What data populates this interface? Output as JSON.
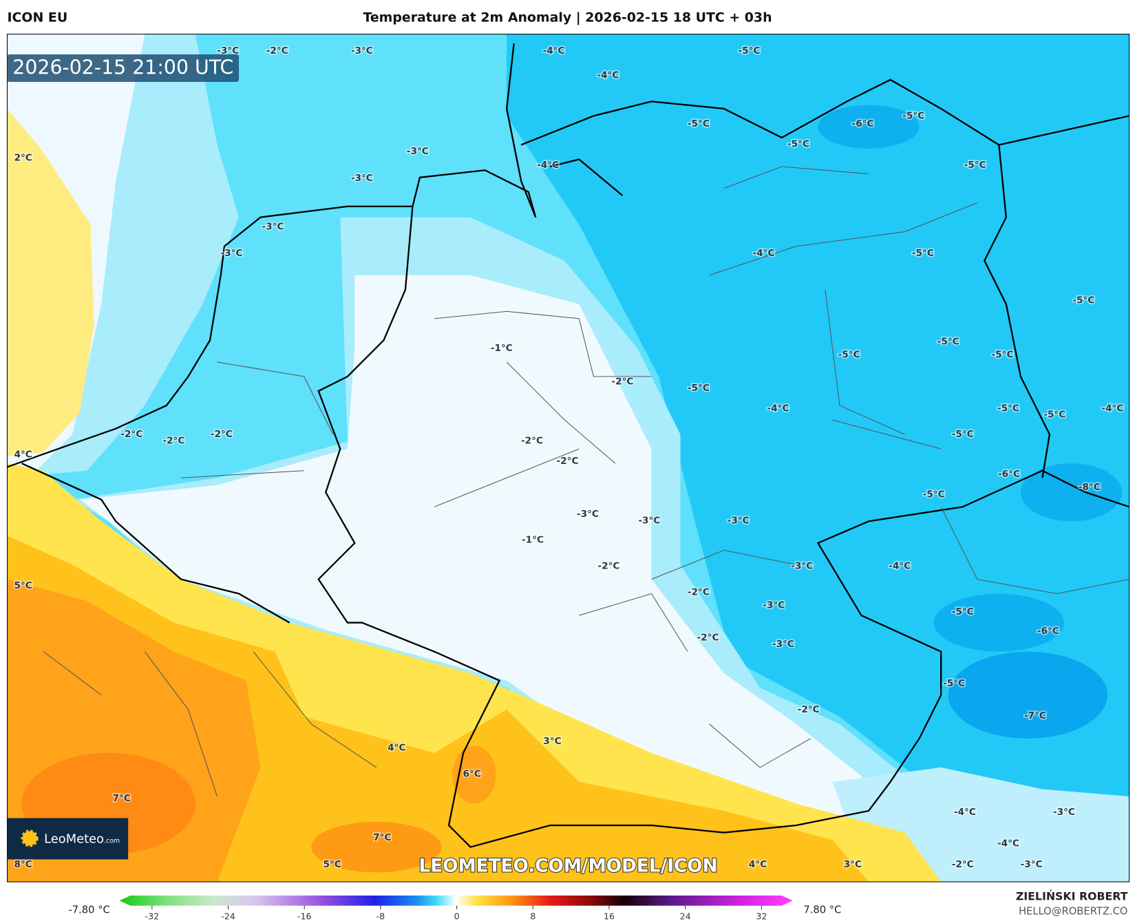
{
  "header": {
    "model": "ICON EU",
    "title": "Temperature at 2m Anomaly | 2026-02-15 18 UTC + 03h"
  },
  "map": {
    "valid_time": "2026-02-15 21:00 UTC",
    "labels": [
      "-3°C",
      "-2°C",
      "-3°C",
      "-4°C",
      "-5°C",
      "-4°C",
      "-5°C",
      "-6°C",
      "-5°C",
      "-5°C",
      "-5°C",
      "2°C",
      "-3°C",
      "-4°C",
      "-3°C",
      "-3°C",
      "-3°C",
      "-4°C",
      "-5°C",
      "-5°C",
      "-1°C",
      "-5°C",
      "-5°C",
      "-5°C",
      "-2°C",
      "-5°C",
      "-4°C",
      "-5°C",
      "-5°C",
      "-4°C",
      "-5°C",
      "-2°C",
      "-2°C",
      "-2°C",
      "4°C",
      "-2°C",
      "-2°C",
      "-6°C",
      "-8°C",
      "-5°C",
      "-3°C",
      "-3°C",
      "-3°C",
      "-1°C",
      "-2°C",
      "-3°C",
      "-4°C",
      "5°C",
      "-2°C",
      "-3°C",
      "-5°C",
      "-6°C",
      "-2°C",
      "-3°C",
      "-5°C",
      "-2°C",
      "-7°C",
      "3°C",
      "4°C",
      "6°C",
      "7°C",
      "-4°C",
      "-3°C",
      "7°C",
      "-4°C",
      "8°C",
      "5°C",
      "4°C",
      "3°C",
      "-2°C",
      "-3°C"
    ],
    "watermark": "LEOMETEO.COM/MODEL/ICON",
    "logo": {
      "name": "LeoMeteo",
      "suffix": ".com"
    }
  },
  "colorbar": {
    "min_label": "-7.80 °C",
    "max_label": "7.80 °C",
    "ticks": [
      -32,
      -24,
      -16,
      -8,
      0,
      8,
      16,
      24,
      32
    ]
  },
  "footer": {
    "author": "ZIELIŃSKI ROBERT",
    "contact": "HELLO@ROBERTZ.CO"
  }
}
